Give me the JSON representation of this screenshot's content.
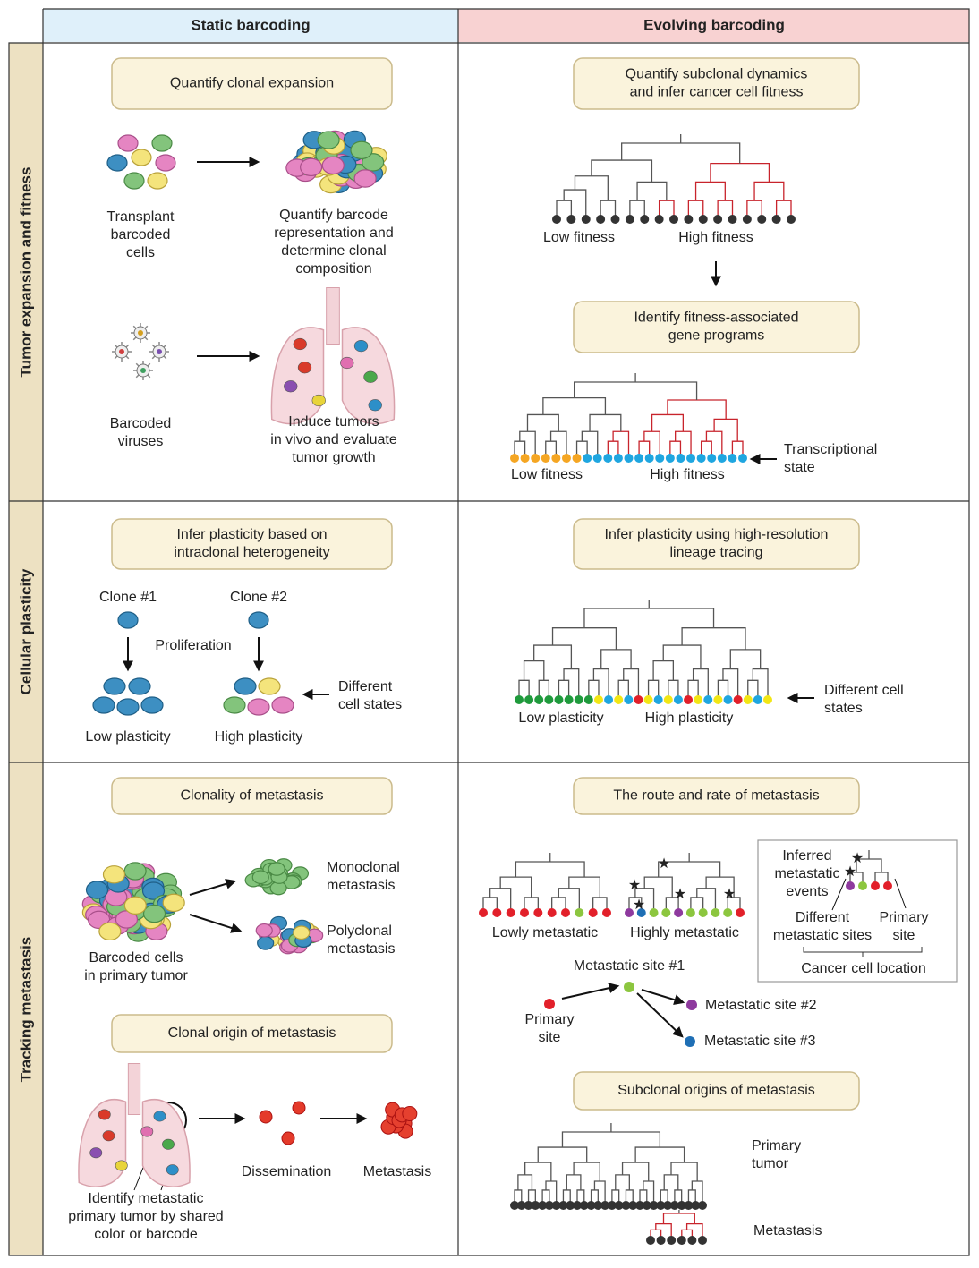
{
  "columns": [
    "Static barcoding",
    "Evolving barcoding"
  ],
  "rows": [
    "Tumor expansion and fitness",
    "Cellular plasticity",
    "Tracking metastasis"
  ],
  "panels": [
    {
      "boxes": [
        [
          "Quantify clonal expansion"
        ]
      ],
      "labels": [
        [
          "Transplant",
          "barcoded",
          "cells"
        ],
        [
          "Quantify barcode",
          "representation and",
          "determine clonal",
          "composition"
        ],
        [
          "Barcoded",
          "viruses"
        ],
        [
          "Induce tumors",
          "in vivo and evaluate",
          "tumor growth"
        ]
      ]
    },
    {
      "boxes": [
        [
          "Quantify subclonal dynamics",
          "and infer cancer cell fitness"
        ],
        [
          "Identify fitness-associated",
          "gene programs"
        ]
      ],
      "labels": [
        [
          "Low fitness"
        ],
        [
          "High fitness"
        ],
        [
          "Low fitness"
        ],
        [
          "High fitness"
        ],
        [
          "Transcriptional",
          "state"
        ]
      ]
    },
    {
      "boxes": [
        [
          "Infer plasticity based on",
          "intraclonal heterogeneity"
        ]
      ],
      "labels": [
        [
          "Clone #1"
        ],
        [
          "Clone #2"
        ],
        [
          "Proliferation"
        ],
        [
          "Different",
          "cell states"
        ],
        [
          "Low plasticity"
        ],
        [
          "High plasticity"
        ]
      ]
    },
    {
      "boxes": [
        [
          "Infer plasticity using high-resolution",
          "lineage tracing"
        ]
      ],
      "labels": [
        [
          "Low plasticity"
        ],
        [
          "High plasticity"
        ],
        [
          "Different cell",
          "states"
        ]
      ]
    },
    {
      "boxes": [
        [
          "Clonality of metastasis"
        ],
        [
          "Clonal origin of metastasis"
        ]
      ],
      "labels": [
        [
          "Monoclonal",
          "metastasis"
        ],
        [
          "Polyclonal",
          "metastasis"
        ],
        [
          "Barcoded cells",
          "in primary tumor"
        ],
        [
          "Dissemination"
        ],
        [
          "Metastasis"
        ],
        [
          "Identify metastatic",
          "primary tumor by shared",
          "color or barcode"
        ]
      ]
    },
    {
      "boxes": [
        [
          "The route and rate of metastasis"
        ],
        [
          "Subclonal origins of metastasis"
        ]
      ],
      "labels": [
        [
          "Lowly metastatic"
        ],
        [
          "Highly metastatic"
        ],
        [
          "Inferred",
          "metastatic",
          "events"
        ],
        [
          "Different",
          "metastatic sites"
        ],
        [
          "Primary",
          "site"
        ],
        [
          "Cancer cell location"
        ],
        [
          "Metastatic site #1"
        ],
        [
          "Primary",
          "site"
        ],
        [
          "Metastatic site #2"
        ],
        [
          "Metastatic site #3"
        ],
        [
          "Primary",
          "tumor"
        ],
        [
          "Metastasis"
        ]
      ]
    }
  ]
}
